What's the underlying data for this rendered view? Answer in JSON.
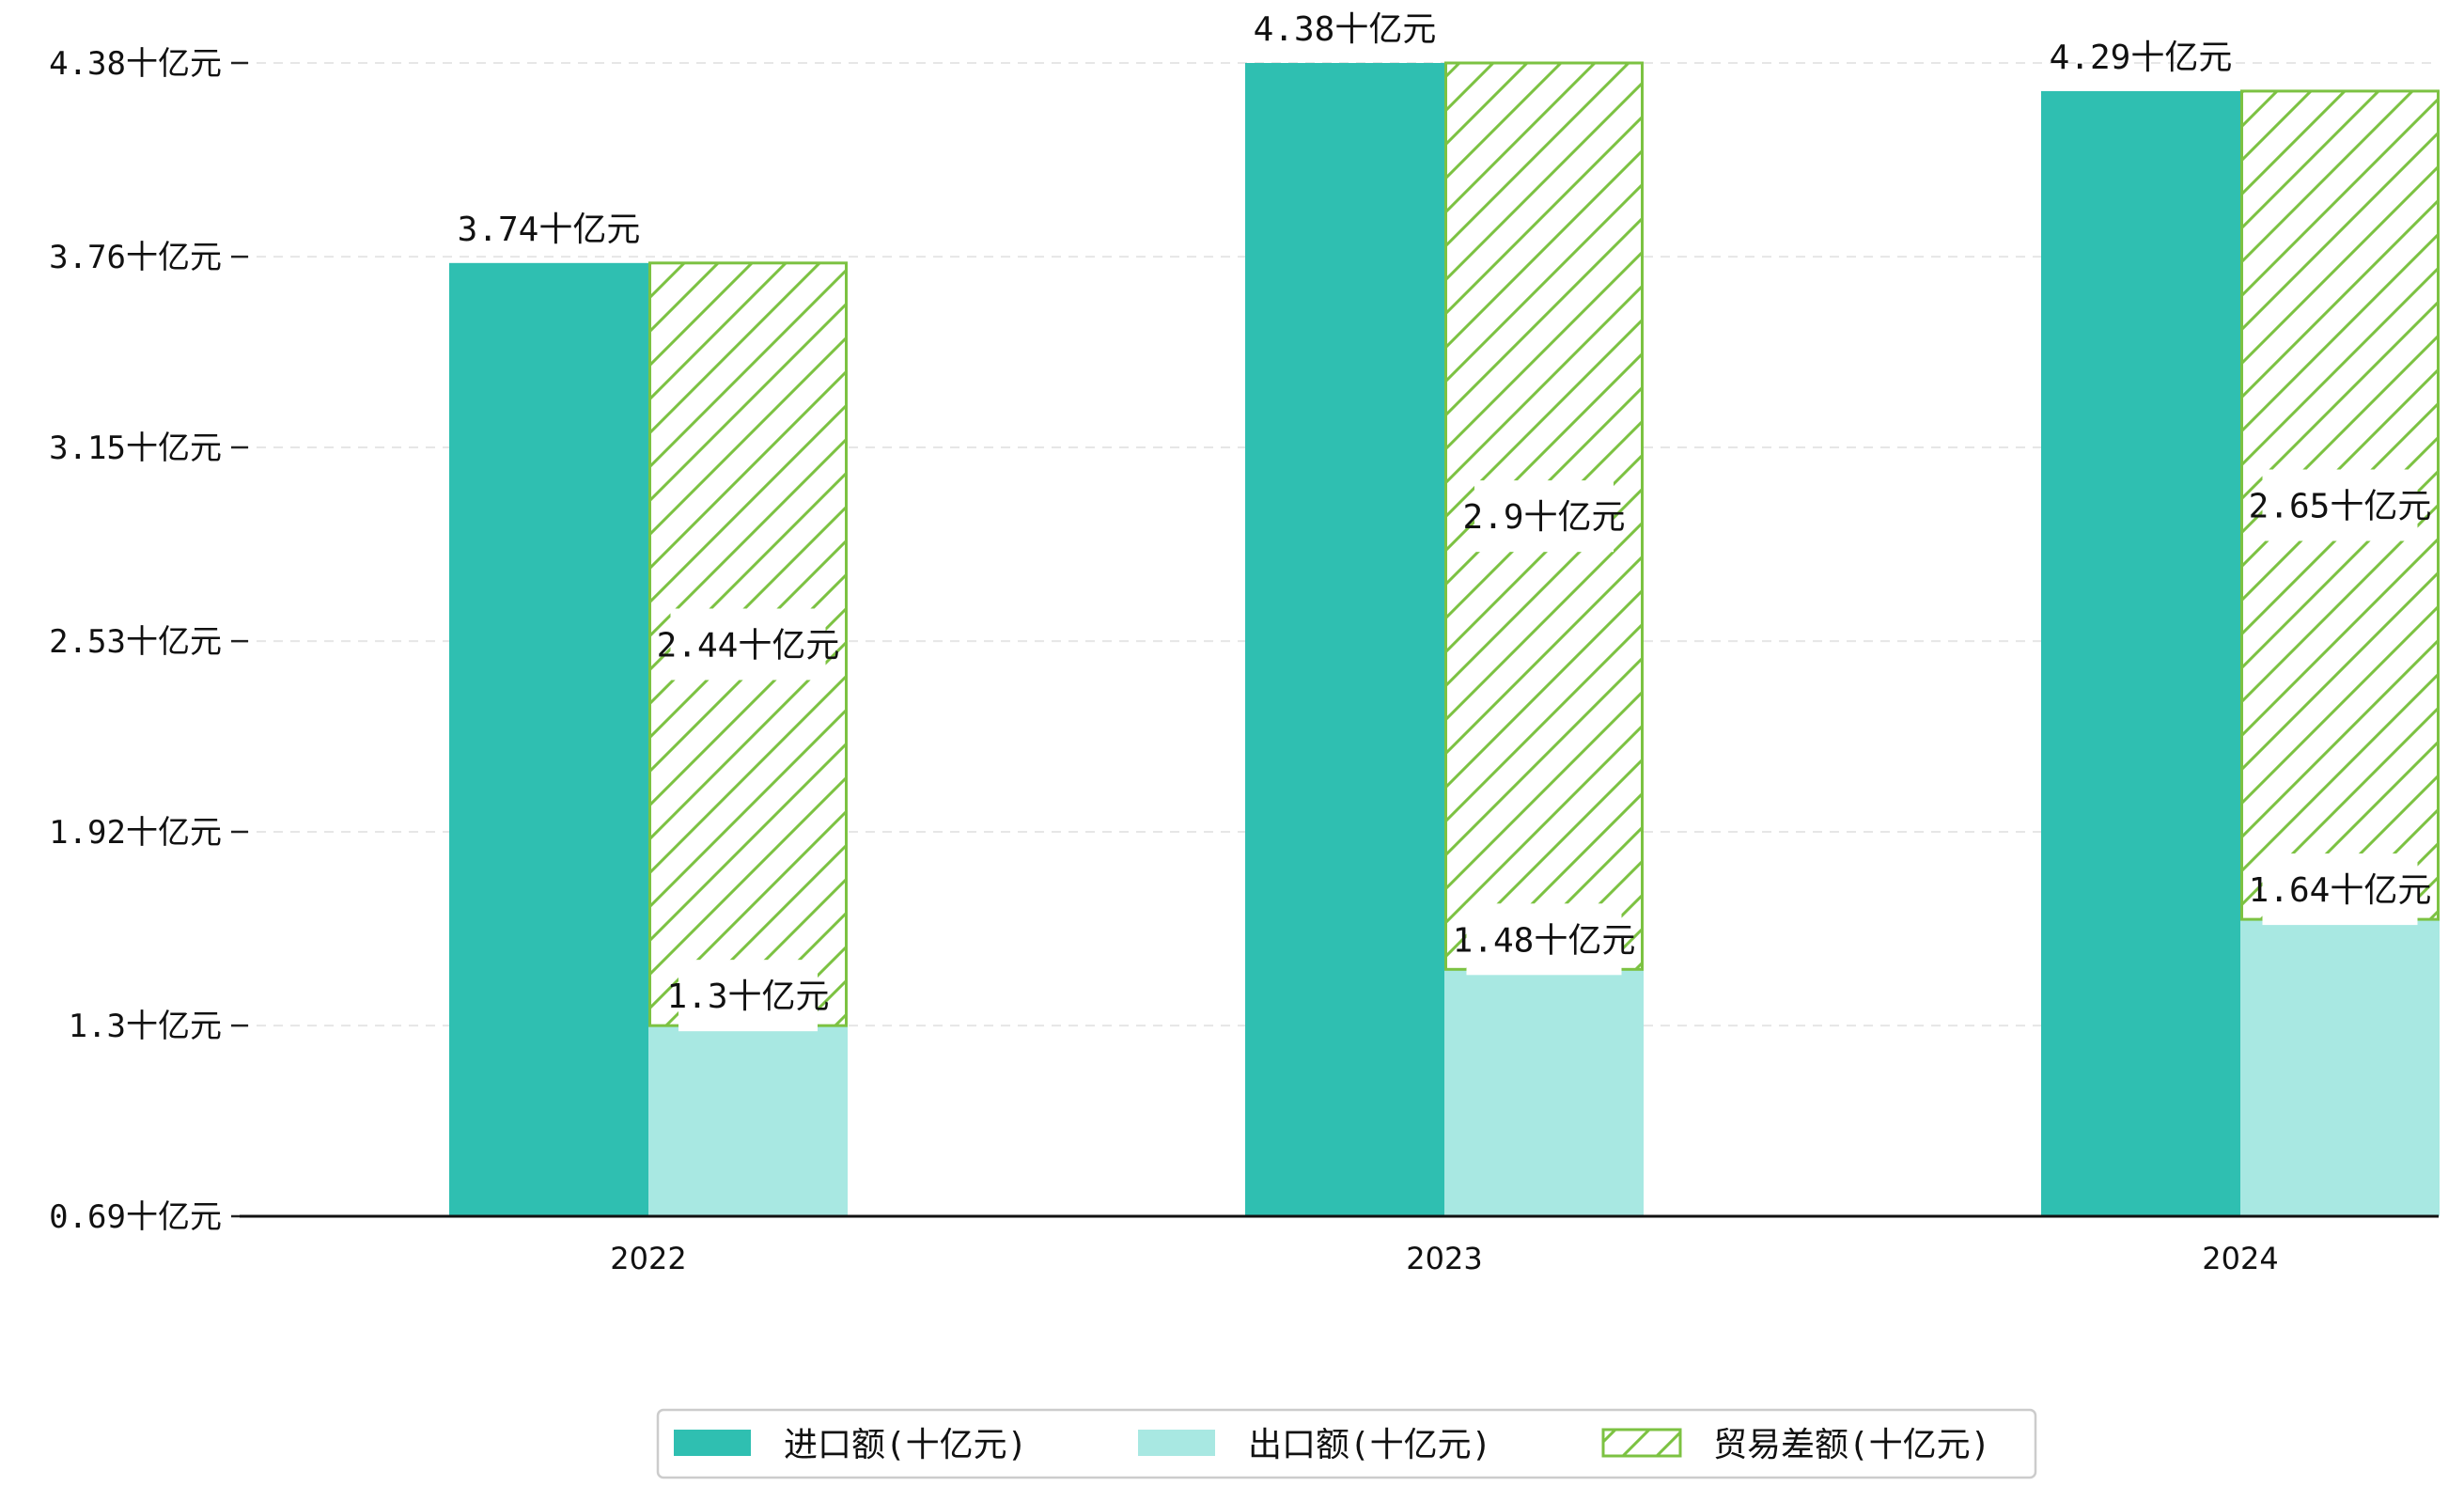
{
  "chart_data": {
    "type": "bar",
    "categories": [
      "2022",
      "2023",
      "2024"
    ],
    "series": [
      {
        "name": "进口额(十亿元)",
        "values": [
          3.74,
          4.38,
          4.29
        ],
        "labels": [
          "3.74十亿元",
          "4.38十亿元",
          "4.29十亿元"
        ],
        "color": "#2fbfb1",
        "style": "solid"
      },
      {
        "name": "出口额(十亿元)",
        "values": [
          1.3,
          1.48,
          1.64
        ],
        "labels": [
          "1.3十亿元",
          "1.48十亿元",
          "1.64十亿元"
        ],
        "color": "#a8e8e2",
        "style": "solid"
      },
      {
        "name": "贸易差额(十亿元)",
        "values": [
          2.44,
          2.9,
          2.65
        ],
        "labels": [
          "2.44十亿元",
          "2.9十亿元",
          "2.65十亿元"
        ],
        "color": "#7cc242",
        "style": "hatched",
        "stacked_on": "出口额(十亿元)"
      }
    ],
    "yticks": [
      0.69,
      1.3,
      1.92,
      2.53,
      3.15,
      3.76,
      4.38
    ],
    "ytick_labels": [
      "0.69十亿元",
      "1.3十亿元",
      "1.92十亿元",
      "2.53十亿元",
      "3.15十亿元",
      "3.76十亿元",
      "4.38十亿元"
    ],
    "ylim": [
      0.69,
      4.38
    ],
    "grid": "horizontal-dashed",
    "legend_position": "bottom-center",
    "title": "",
    "xlabel": "",
    "ylabel": ""
  }
}
